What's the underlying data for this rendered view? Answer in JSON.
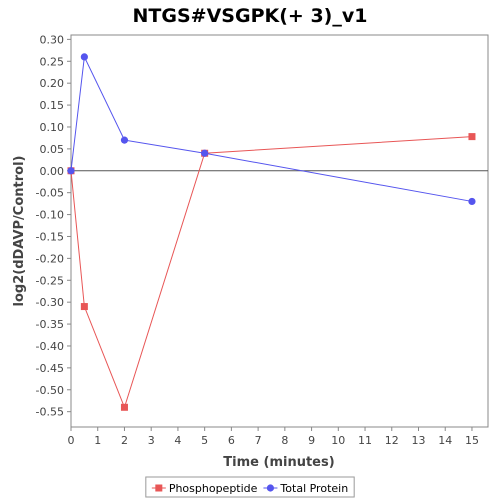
{
  "chart_data": {
    "type": "line",
    "title": "NTGS#VSGPK(+ 3)_v1",
    "xlabel": "Time (minutes)",
    "ylabel": "log2(dDAVP/Control)",
    "xlim": [
      0,
      15.6
    ],
    "ylim": [
      -0.585,
      0.31
    ],
    "xticks": [
      0,
      1,
      2,
      3,
      4,
      5,
      6,
      7,
      8,
      9,
      10,
      11,
      12,
      13,
      14,
      15
    ],
    "yticks": [
      0.3,
      0.25,
      0.2,
      0.15,
      0.1,
      0.05,
      0.0,
      -0.05,
      -0.1,
      -0.15,
      -0.2,
      -0.25,
      -0.3,
      -0.35,
      -0.4,
      -0.45,
      -0.5,
      -0.55
    ],
    "ytick_labels": [
      "0.30",
      "0.25",
      "0.20",
      "0.15",
      "0.10",
      "0.05",
      "0.00",
      "-0.05",
      "-0.10",
      "-0.15",
      "-0.20",
      "-0.25",
      "-0.30",
      "-0.35",
      "-0.40",
      "-0.45",
      "-0.50",
      "-0.55"
    ],
    "legend_position": "bottom",
    "grid": false,
    "series": [
      {
        "name": "Phosphopeptide",
        "color": "#e85656",
        "marker": "square",
        "x": [
          0,
          0.5,
          2,
          5,
          15
        ],
        "y": [
          0.0,
          -0.31,
          -0.54,
          0.04,
          0.078
        ]
      },
      {
        "name": "Total Protein",
        "color": "#5555ee",
        "marker": "circle",
        "x": [
          0,
          0.5,
          2,
          5,
          15
        ],
        "y": [
          0.0,
          0.26,
          0.07,
          0.04,
          -0.07
        ]
      }
    ]
  }
}
